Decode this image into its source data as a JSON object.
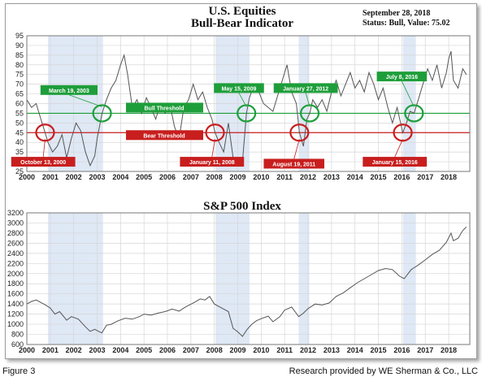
{
  "header": {
    "title_line1": "U.S. Equities",
    "title_line2": "Bull-Bear Indicator",
    "date": "September 28, 2018",
    "status": "Status: Bull, Value: 75.02"
  },
  "footer": {
    "figure": "Figure 3",
    "credit": "Research provided by WE Sherman & Co., LLC"
  },
  "colors": {
    "bull": "#1e9e3a",
    "bear": "#c81e1e",
    "shade": "#dfe8f5",
    "line": "#555555"
  },
  "chart_data": [
    {
      "type": "line",
      "title": "",
      "xlim": [
        2000,
        2018.9
      ],
      "ylim": [
        25,
        95
      ],
      "x_ticks": [
        "2000",
        "2001",
        "2002",
        "2003",
        "2004",
        "2005",
        "2006",
        "2007",
        "2008",
        "2009",
        "2010",
        "2011",
        "2012",
        "2013",
        "2014",
        "2015",
        "2016",
        "2017",
        "2018"
      ],
      "y_ticks": [
        25,
        30,
        35,
        40,
        45,
        50,
        55,
        60,
        65,
        70,
        75,
        80,
        85,
        90,
        95
      ],
      "shaded_periods": [
        [
          2000.9,
          2003.25
        ],
        [
          2008.05,
          2009.5
        ],
        [
          2011.6,
          2012.05
        ],
        [
          2016.05,
          2016.6
        ]
      ],
      "thresholds": [
        {
          "name": "Bull Threshold",
          "value": 55,
          "color": "#1e9e3a"
        },
        {
          "name": "Bear Threshold",
          "value": 45,
          "color": "#c81e1e"
        }
      ],
      "signals": [
        {
          "label": "October 13, 2000",
          "type": "bear",
          "x": 2000.78,
          "y": 45
        },
        {
          "label": "March 19, 2003",
          "type": "bull",
          "x": 2003.21,
          "y": 55
        },
        {
          "label": "January 11, 2008",
          "type": "bear",
          "x": 2008.03,
          "y": 45
        },
        {
          "label": "May 15, 2009",
          "type": "bull",
          "x": 2009.37,
          "y": 55
        },
        {
          "label": "August 19, 2011",
          "type": "bear",
          "x": 2011.63,
          "y": 45
        },
        {
          "label": "January 27, 2012",
          "type": "bull",
          "x": 2012.07,
          "y": 55
        },
        {
          "label": "January 15, 2016",
          "type": "bear",
          "x": 2016.04,
          "y": 45
        },
        {
          "label": "July 8, 2016",
          "type": "bull",
          "x": 2016.52,
          "y": 55
        }
      ],
      "series": [
        {
          "x": [
            2000.0,
            2000.2,
            2000.4,
            2000.6,
            2000.78,
            2000.9,
            2001.1,
            2001.3,
            2001.5,
            2001.7,
            2001.9,
            2002.1,
            2002.3,
            2002.5,
            2002.7,
            2002.9,
            2003.0,
            2003.21,
            2003.4,
            2003.6,
            2003.8,
            2004.0,
            2004.15,
            2004.3,
            2004.5,
            2004.7,
            2004.9,
            2005.1,
            2005.3,
            2005.5,
            2005.7,
            2005.9,
            2006.1,
            2006.3,
            2006.5,
            2006.7,
            2006.9,
            2007.1,
            2007.3,
            2007.5,
            2007.7,
            2007.9,
            2008.03,
            2008.2,
            2008.4,
            2008.6,
            2008.8,
            2009.0,
            2009.2,
            2009.37,
            2009.5,
            2009.7,
            2009.9,
            2010.1,
            2010.3,
            2010.5,
            2010.7,
            2010.9,
            2011.1,
            2011.3,
            2011.5,
            2011.63,
            2011.8,
            2011.95,
            2012.07,
            2012.2,
            2012.4,
            2012.6,
            2012.8,
            2013.0,
            2013.2,
            2013.4,
            2013.6,
            2013.8,
            2014.0,
            2014.2,
            2014.4,
            2014.6,
            2014.8,
            2015.0,
            2015.2,
            2015.4,
            2015.6,
            2015.8,
            2016.04,
            2016.2,
            2016.35,
            2016.52,
            2016.7,
            2016.9,
            2017.1,
            2017.3,
            2017.5,
            2017.7,
            2017.9,
            2018.0,
            2018.1,
            2018.2,
            2018.4,
            2018.6,
            2018.75
          ],
          "y": [
            62,
            58,
            60,
            52,
            45,
            40,
            35,
            38,
            44,
            32,
            42,
            50,
            46,
            35,
            28,
            33,
            42,
            55,
            62,
            68,
            72,
            80,
            85,
            75,
            58,
            62,
            55,
            63,
            58,
            52,
            60,
            55,
            60,
            48,
            42,
            58,
            62,
            70,
            62,
            66,
            58,
            52,
            45,
            40,
            35,
            50,
            32,
            28,
            30,
            55,
            63,
            70,
            66,
            60,
            58,
            56,
            64,
            72,
            80,
            66,
            60,
            45,
            38,
            52,
            55,
            62,
            58,
            62,
            56,
            66,
            72,
            64,
            70,
            76,
            68,
            72,
            66,
            76,
            70,
            62,
            68,
            58,
            50,
            58,
            45,
            50,
            56,
            55,
            62,
            70,
            78,
            72,
            80,
            68,
            76,
            83,
            87,
            72,
            68,
            78,
            75
          ]
        }
      ]
    },
    {
      "type": "line",
      "title": "S&P 500 Index",
      "xlim": [
        2000,
        2018.9
      ],
      "ylim": [
        600,
        3200
      ],
      "x_ticks": [
        "2000",
        "2001",
        "2002",
        "2003",
        "2004",
        "2005",
        "2006",
        "2007",
        "2008",
        "2009",
        "2010",
        "2011",
        "2012",
        "2013",
        "2014",
        "2015",
        "2016",
        "2017",
        "2018"
      ],
      "y_ticks": [
        600,
        800,
        1000,
        1200,
        1400,
        1600,
        1800,
        2000,
        2200,
        2400,
        2600,
        2800,
        3000,
        3200
      ],
      "shaded_periods": [
        [
          2000.9,
          2003.25
        ],
        [
          2008.05,
          2009.5
        ],
        [
          2011.6,
          2012.05
        ],
        [
          2016.05,
          2016.6
        ]
      ],
      "series": [
        {
          "x": [
            2000.0,
            2000.2,
            2000.4,
            2000.6,
            2000.8,
            2001.0,
            2001.2,
            2001.4,
            2001.7,
            2001.9,
            2002.2,
            2002.5,
            2002.7,
            2002.9,
            2003.1,
            2003.2,
            2003.4,
            2003.6,
            2003.9,
            2004.2,
            2004.5,
            2004.8,
            2005.0,
            2005.3,
            2005.6,
            2005.9,
            2006.2,
            2006.5,
            2006.8,
            2007.1,
            2007.4,
            2007.6,
            2007.8,
            2008.0,
            2008.2,
            2008.4,
            2008.6,
            2008.8,
            2009.0,
            2009.2,
            2009.4,
            2009.6,
            2009.8,
            2010.0,
            2010.3,
            2010.5,
            2010.8,
            2011.0,
            2011.3,
            2011.6,
            2011.8,
            2012.0,
            2012.3,
            2012.6,
            2012.9,
            2013.2,
            2013.5,
            2013.8,
            2014.1,
            2014.4,
            2014.7,
            2015.0,
            2015.3,
            2015.6,
            2015.9,
            2016.1,
            2016.4,
            2016.7,
            2017.0,
            2017.3,
            2017.6,
            2017.9,
            2018.1,
            2018.2,
            2018.4,
            2018.6,
            2018.75
          ],
          "y": [
            1400,
            1450,
            1480,
            1430,
            1380,
            1320,
            1200,
            1250,
            1080,
            1150,
            1100,
            950,
            860,
            900,
            850,
            830,
            980,
            1000,
            1070,
            1120,
            1100,
            1150,
            1200,
            1180,
            1220,
            1250,
            1300,
            1260,
            1350,
            1420,
            1500,
            1480,
            1550,
            1400,
            1350,
            1300,
            1250,
            920,
            850,
            760,
            900,
            1000,
            1070,
            1110,
            1160,
            1050,
            1150,
            1280,
            1340,
            1150,
            1220,
            1310,
            1400,
            1380,
            1420,
            1550,
            1620,
            1720,
            1820,
            1900,
            1980,
            2060,
            2100,
            2080,
            1950,
            1900,
            2080,
            2170,
            2270,
            2380,
            2460,
            2620,
            2800,
            2650,
            2700,
            2850,
            2920
          ]
        }
      ]
    }
  ]
}
